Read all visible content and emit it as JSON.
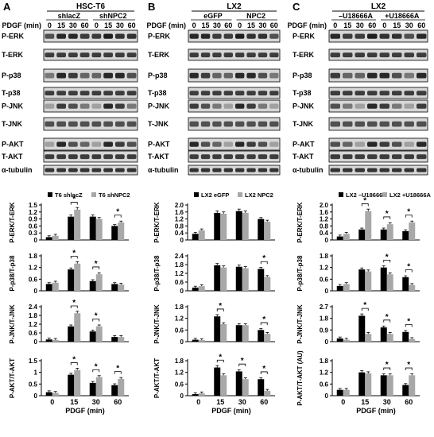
{
  "figure": {
    "panels": [
      {
        "letter": "A",
        "cell_line": "HSC-T6",
        "groups": [
          "shlacZ",
          "shNPC2"
        ],
        "pdgf_label": "PDGF (min)",
        "timepoints": [
          "0",
          "15",
          "30",
          "60",
          "0",
          "15",
          "30",
          "60"
        ],
        "blots": [
          "P-ERK",
          "T-ERK",
          "P-p38",
          "T-p38",
          "P-JNK",
          "T-JNK",
          "P-AKT",
          "T-AKT",
          "α-tubulin"
        ]
      },
      {
        "letter": "B",
        "cell_line": "LX2",
        "groups": [
          "eGFP",
          "NPC2"
        ],
        "pdgf_label": "PDGF (min)",
        "timepoints": [
          "0",
          "15",
          "30",
          "60",
          "0",
          "15",
          "30",
          "60"
        ],
        "blots": [
          "P-ERK",
          "T-ERK",
          "P-p38",
          "T-p38",
          "P-JNK",
          "T-JNK",
          "P-AKT",
          "T-AKT",
          "α-tubulin"
        ]
      },
      {
        "letter": "C",
        "cell_line": "LX2",
        "groups": [
          "–U18666A",
          "+U18666A"
        ],
        "pdgf_label": "PDGF (min)",
        "timepoints": [
          "0",
          "15",
          "30",
          "60",
          "0",
          "15",
          "30",
          "60"
        ],
        "blots": [
          "P-ERK",
          "T-ERK",
          "P-p38",
          "T-p38",
          "P-JNK",
          "T-JNK",
          "P-AKT",
          "T-AKT",
          "α-tubulin"
        ]
      }
    ]
  },
  "chart_data": [
    {
      "type": "bar",
      "panel": "A",
      "ylabel": "P-ERK/T-ERK",
      "xlabel": "",
      "ylim": [
        0,
        1.5
      ],
      "yticks": [
        "0",
        "0.3",
        "0.6",
        "0.9",
        "1.2",
        "1.5"
      ],
      "categories": [
        "0",
        "15",
        "30",
        "60"
      ],
      "legend": [
        "T6 shlacZ",
        "T6 shNPC2"
      ],
      "series": [
        {
          "name": "T6 shlacZ",
          "values": [
            0.12,
            1.0,
            1.0,
            0.6
          ]
        },
        {
          "name": "T6 shNPC2",
          "values": [
            0.18,
            1.3,
            0.9,
            0.75
          ]
        }
      ],
      "sig": [
        1,
        3
      ]
    },
    {
      "type": "bar",
      "panel": "A",
      "ylabel": "P-p38/T-p38",
      "xlabel": "",
      "ylim": [
        0,
        1.8
      ],
      "yticks": [
        "0",
        "0.6",
        "1.2",
        "1.8"
      ],
      "categories": [
        "0",
        "15",
        "30",
        "60"
      ],
      "series": [
        {
          "name": "T6 shlacZ",
          "values": [
            0.35,
            1.1,
            0.5,
            0.35
          ]
        },
        {
          "name": "T6 shNPC2",
          "values": [
            0.42,
            1.4,
            0.85,
            0.32
          ]
        }
      ],
      "sig": [
        1,
        2
      ]
    },
    {
      "type": "bar",
      "panel": "A",
      "ylabel": "P-JNK/T-JNK",
      "xlabel": "",
      "ylim": [
        0,
        2.4
      ],
      "yticks": [
        "0",
        "0.6",
        "1.2",
        "1.8",
        "2.4"
      ],
      "categories": [
        "0",
        "15",
        "30",
        "60"
      ],
      "series": [
        {
          "name": "T6 shlacZ",
          "values": [
            0.15,
            1.05,
            0.7,
            0.32
          ]
        },
        {
          "name": "T6 shNPC2",
          "values": [
            0.12,
            1.95,
            1.05,
            0.32
          ]
        }
      ],
      "sig": [
        1,
        2
      ]
    },
    {
      "type": "bar",
      "panel": "A",
      "ylabel": "P-AKT/T-AKT",
      "xlabel": "PDGF (min)",
      "ylim": [
        0,
        1.5
      ],
      "yticks": [
        "0",
        "0.5",
        "1",
        "1.5"
      ],
      "categories": [
        "0",
        "15",
        "30",
        "60"
      ],
      "series": [
        {
          "name": "T6 shlacZ",
          "values": [
            0.15,
            0.9,
            0.55,
            0.45
          ]
        },
        {
          "name": "T6 shNPC2",
          "values": [
            0.12,
            1.1,
            0.8,
            0.72
          ]
        }
      ],
      "sig": [
        1,
        2,
        3
      ]
    },
    {
      "type": "bar",
      "panel": "B",
      "ylabel": "P-ERK/T-ERK",
      "xlabel": "",
      "ylim": [
        0,
        2.0
      ],
      "yticks": [
        "0",
        "0.4",
        "0.8",
        "1.2",
        "1.6",
        "2.0"
      ],
      "categories": [
        "0",
        "15",
        "30",
        "60"
      ],
      "legend": [
        "LX2 eGFP",
        "LX2 NPC2"
      ],
      "series": [
        {
          "name": "LX2 eGFP",
          "values": [
            0.35,
            1.55,
            1.65,
            1.2
          ]
        },
        {
          "name": "LX2 NPC2",
          "values": [
            0.55,
            1.5,
            1.55,
            1.05
          ]
        }
      ],
      "sig": []
    },
    {
      "type": "bar",
      "panel": "B",
      "ylabel": "P-p38/T-p38",
      "xlabel": "",
      "ylim": [
        0,
        2.4
      ],
      "yticks": [
        "0",
        "0.6",
        "1.2",
        "1.8",
        "2.4"
      ],
      "categories": [
        "0",
        "15",
        "30",
        "60"
      ],
      "series": [
        {
          "name": "LX2 eGFP",
          "values": [
            0.22,
            1.75,
            1.65,
            1.5
          ]
        },
        {
          "name": "LX2 NPC2",
          "values": [
            0.32,
            1.6,
            1.55,
            0.95
          ]
        }
      ],
      "sig": [
        3
      ]
    },
    {
      "type": "bar",
      "panel": "B",
      "ylabel": "P-JNK/T-JNK",
      "xlabel": "",
      "ylim": [
        0,
        1.8
      ],
      "yticks": [
        "0",
        "0.6",
        "1.2",
        "1.8"
      ],
      "categories": [
        "0",
        "15",
        "30",
        "60"
      ],
      "series": [
        {
          "name": "LX2 eGFP",
          "values": [
            0.1,
            1.3,
            0.85,
            0.6
          ]
        },
        {
          "name": "LX2 NPC2",
          "values": [
            0.08,
            0.9,
            0.85,
            0.4
          ]
        }
      ],
      "sig": [
        1,
        3
      ]
    },
    {
      "type": "bar",
      "panel": "B",
      "ylabel": "P-AKT/T-AKT",
      "xlabel": "PDGF (min)",
      "ylim": [
        0,
        1.8
      ],
      "yticks": [
        "0",
        "0.6",
        "1.2",
        "1.8"
      ],
      "categories": [
        "0",
        "15",
        "30",
        "60"
      ],
      "series": [
        {
          "name": "LX2 eGFP",
          "values": [
            0.08,
            1.45,
            1.25,
            0.85
          ]
        },
        {
          "name": "LX2 NPC2",
          "values": [
            0.12,
            1.05,
            0.85,
            0.25
          ]
        }
      ],
      "sig": [
        1,
        2,
        3
      ]
    },
    {
      "type": "bar",
      "panel": "C",
      "ylabel": "P-ERK/T-ERK",
      "xlabel": "",
      "ylim": [
        0,
        2.0
      ],
      "yticks": [
        "0",
        "0.4",
        "0.8",
        "1.2",
        "1.6",
        "2.0"
      ],
      "categories": [
        "0",
        "15",
        "30",
        "60"
      ],
      "legend": [
        "LX2 –U18666A",
        "LX2 +U18666A"
      ],
      "series": [
        {
          "name": "LX2 –U18666A",
          "values": [
            0.2,
            0.6,
            0.6,
            0.5
          ]
        },
        {
          "name": "LX2 +U18666A",
          "values": [
            0.35,
            1.65,
            0.9,
            1.0
          ]
        }
      ],
      "sig": [
        1,
        2,
        3
      ]
    },
    {
      "type": "bar",
      "panel": "C",
      "ylabel": "P-p38/T-p38",
      "xlabel": "",
      "ylim": [
        0,
        1.8
      ],
      "yticks": [
        "0",
        "0.6",
        "1.2",
        "1.8"
      ],
      "categories": [
        "0",
        "15",
        "30",
        "60"
      ],
      "series": [
        {
          "name": "LX2 –U18666A",
          "values": [
            0.25,
            1.1,
            1.2,
            0.7
          ]
        },
        {
          "name": "LX2 +U18666A",
          "values": [
            0.35,
            1.0,
            0.85,
            0.3
          ]
        }
      ],
      "sig": [
        2,
        3
      ]
    },
    {
      "type": "bar",
      "panel": "C",
      "ylabel": "P-JNK/T-JNK",
      "xlabel": "",
      "ylim": [
        0,
        2.7
      ],
      "yticks": [
        "0",
        "0.9",
        "1.8",
        "2.7"
      ],
      "categories": [
        "0",
        "15",
        "30",
        "60"
      ],
      "series": [
        {
          "name": "LX2 –U18666A",
          "values": [
            0.25,
            2.0,
            1.1,
            0.75
          ]
        },
        {
          "name": "LX2 +U18666A",
          "values": [
            0.15,
            0.6,
            0.6,
            0.2
          ]
        }
      ],
      "sig": [
        1,
        2,
        3
      ]
    },
    {
      "type": "bar",
      "panel": "C",
      "ylabel": "P-AKT/T-AKT (AU)",
      "xlabel": "PDGF (min)",
      "ylim": [
        0,
        1.8
      ],
      "yticks": [
        "0",
        "0.6",
        "1.2",
        "1.8"
      ],
      "categories": [
        "0",
        "15",
        "30",
        "60"
      ],
      "series": [
        {
          "name": "LX2 –U18666A",
          "values": [
            0.3,
            1.2,
            1.05,
            0.55
          ]
        },
        {
          "name": "LX2 +U18666A",
          "values": [
            0.3,
            1.15,
            1.05,
            1.05
          ]
        }
      ],
      "sig": [
        2,
        3
      ]
    }
  ]
}
